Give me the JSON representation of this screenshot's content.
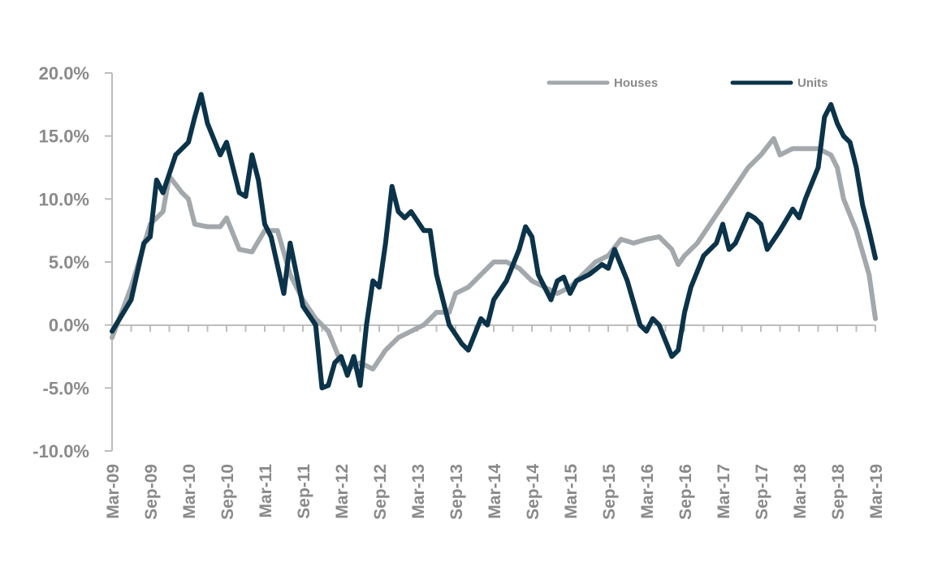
{
  "chart_data": {
    "type": "line",
    "x_tick_labels": [
      "Mar-09",
      "Sep-09",
      "Mar-10",
      "Sep-10",
      "Mar-11",
      "Sep-11",
      "Mar-12",
      "Sep-12",
      "Mar-13",
      "Sep-13",
      "Mar-14",
      "Sep-14",
      "Mar-15",
      "Sep-15",
      "Mar-16",
      "Sep-16",
      "Mar-17",
      "Sep-17",
      "Mar-18",
      "Sep-18",
      "Mar-19"
    ],
    "y_tick_labels": [
      "20.0%",
      "15.0%",
      "10.0%",
      "5.0%",
      "0.0%",
      "-5.0%",
      "-10.0%"
    ],
    "ylim": [
      -10,
      20
    ],
    "grid": false,
    "legend_placement": "top-right",
    "series": [
      {
        "name": "Houses",
        "color": "#a3a8ac",
        "points": [
          [
            "Mar-09",
            -1.0
          ],
          [
            "Jun-09",
            3.0
          ],
          [
            "Sep-09",
            8.0
          ],
          [
            "Nov-09",
            9.0
          ],
          [
            "Dec-09",
            11.8
          ],
          [
            "Feb-10",
            10.5
          ],
          [
            "Mar-10",
            10.0
          ],
          [
            "Apr-10",
            8.0
          ],
          [
            "Jun-10",
            7.8
          ],
          [
            "Aug-10",
            7.8
          ],
          [
            "Sep-10",
            8.5
          ],
          [
            "Nov-10",
            6.0
          ],
          [
            "Jan-11",
            5.8
          ],
          [
            "Mar-11",
            7.5
          ],
          [
            "May-11",
            7.5
          ],
          [
            "Jul-11",
            4.0
          ],
          [
            "Sep-11",
            2.0
          ],
          [
            "Nov-11",
            0.5
          ],
          [
            "Jan-12",
            -0.5
          ],
          [
            "Mar-12",
            -3.0
          ],
          [
            "Apr-12",
            -3.5
          ],
          [
            "Jun-12",
            -3.0
          ],
          [
            "Aug-12",
            -3.5
          ],
          [
            "Oct-12",
            -2.0
          ],
          [
            "Dec-12",
            -1.0
          ],
          [
            "Feb-13",
            -0.5
          ],
          [
            "Apr-13",
            0.0
          ],
          [
            "Jun-13",
            1.0
          ],
          [
            "Aug-13",
            1.0
          ],
          [
            "Sep-13",
            2.5
          ],
          [
            "Nov-13",
            3.0
          ],
          [
            "Jan-14",
            4.0
          ],
          [
            "Mar-14",
            5.0
          ],
          [
            "May-14",
            5.0
          ],
          [
            "Jul-14",
            4.5
          ],
          [
            "Sep-14",
            3.5
          ],
          [
            "Nov-14",
            3.0
          ],
          [
            "Jan-15",
            2.5
          ],
          [
            "Mar-15",
            3.0
          ],
          [
            "May-15",
            4.0
          ],
          [
            "Jul-15",
            5.0
          ],
          [
            "Sep-15",
            5.5
          ],
          [
            "Nov-15",
            6.8
          ],
          [
            "Jan-16",
            6.5
          ],
          [
            "Mar-16",
            6.8
          ],
          [
            "May-16",
            7.0
          ],
          [
            "Jul-16",
            6.0
          ],
          [
            "Aug-16",
            4.8
          ],
          [
            "Sep-16",
            5.5
          ],
          [
            "Nov-16",
            6.5
          ],
          [
            "Jan-17",
            8.0
          ],
          [
            "Mar-17",
            9.5
          ],
          [
            "May-17",
            11.0
          ],
          [
            "Jul-17",
            12.5
          ],
          [
            "Sep-17",
            13.5
          ],
          [
            "Nov-17",
            14.8
          ],
          [
            "Dec-17",
            13.5
          ],
          [
            "Feb-18",
            14.0
          ],
          [
            "Apr-18",
            14.0
          ],
          [
            "Jun-18",
            14.0
          ],
          [
            "Aug-18",
            13.5
          ],
          [
            "Sep-18",
            12.5
          ],
          [
            "Oct-18",
            10.0
          ],
          [
            "Dec-18",
            7.5
          ],
          [
            "Feb-19",
            4.0
          ],
          [
            "Mar-19",
            0.5
          ]
        ]
      },
      {
        "name": "Units",
        "color": "#0b3349",
        "points": [
          [
            "Mar-09",
            -0.5
          ],
          [
            "Jun-09",
            2.0
          ],
          [
            "Aug-09",
            6.5
          ],
          [
            "Sep-09",
            7.0
          ],
          [
            "Oct-09",
            11.5
          ],
          [
            "Nov-09",
            10.5
          ],
          [
            "Dec-09",
            12.0
          ],
          [
            "Jan-10",
            13.5
          ],
          [
            "Mar-10",
            14.5
          ],
          [
            "Apr-10",
            16.5
          ],
          [
            "May-10",
            18.3
          ],
          [
            "Jun-10",
            16.0
          ],
          [
            "Aug-10",
            13.5
          ],
          [
            "Sep-10",
            14.5
          ],
          [
            "Nov-10",
            10.5
          ],
          [
            "Dec-10",
            10.2
          ],
          [
            "Jan-11",
            13.5
          ],
          [
            "Feb-11",
            11.5
          ],
          [
            "Mar-11",
            8.0
          ],
          [
            "Apr-11",
            7.0
          ],
          [
            "Jun-11",
            2.5
          ],
          [
            "Jul-11",
            6.5
          ],
          [
            "Aug-11",
            4.0
          ],
          [
            "Sep-11",
            1.5
          ],
          [
            "Nov-11",
            0.0
          ],
          [
            "Dec-11",
            -5.0
          ],
          [
            "Jan-12",
            -4.8
          ],
          [
            "Feb-12",
            -3.0
          ],
          [
            "Mar-12",
            -2.5
          ],
          [
            "Apr-12",
            -4.0
          ],
          [
            "May-12",
            -2.5
          ],
          [
            "Jun-12",
            -4.8
          ],
          [
            "Jul-12",
            0.0
          ],
          [
            "Aug-12",
            3.5
          ],
          [
            "Sep-12",
            3.0
          ],
          [
            "Oct-12",
            6.5
          ],
          [
            "Nov-12",
            11.0
          ],
          [
            "Dec-12",
            9.0
          ],
          [
            "Jan-13",
            8.5
          ],
          [
            "Feb-13",
            9.0
          ],
          [
            "Apr-13",
            7.5
          ],
          [
            "May-13",
            7.5
          ],
          [
            "Jun-13",
            4.0
          ],
          [
            "Aug-13",
            0.0
          ],
          [
            "Oct-13",
            -1.5
          ],
          [
            "Nov-13",
            -2.0
          ],
          [
            "Jan-14",
            0.5
          ],
          [
            "Feb-14",
            0.0
          ],
          [
            "Mar-14",
            2.0
          ],
          [
            "May-14",
            3.5
          ],
          [
            "Jul-14",
            6.0
          ],
          [
            "Aug-14",
            7.8
          ],
          [
            "Sep-14",
            7.0
          ],
          [
            "Oct-14",
            4.0
          ],
          [
            "Dec-14",
            2.0
          ],
          [
            "Jan-15",
            3.5
          ],
          [
            "Feb-15",
            3.8
          ],
          [
            "Mar-15",
            2.5
          ],
          [
            "Apr-15",
            3.5
          ],
          [
            "Jun-15",
            4.0
          ],
          [
            "Aug-15",
            4.8
          ],
          [
            "Sep-15",
            4.5
          ],
          [
            "Oct-15",
            6.0
          ],
          [
            "Dec-15",
            3.5
          ],
          [
            "Feb-16",
            0.0
          ],
          [
            "Mar-16",
            -0.5
          ],
          [
            "Apr-16",
            0.5
          ],
          [
            "May-16",
            0.0
          ],
          [
            "Jul-16",
            -2.5
          ],
          [
            "Aug-16",
            -2.0
          ],
          [
            "Sep-16",
            1.0
          ],
          [
            "Oct-16",
            3.0
          ],
          [
            "Dec-16",
            5.5
          ],
          [
            "Feb-17",
            6.5
          ],
          [
            "Mar-17",
            8.0
          ],
          [
            "Apr-17",
            6.0
          ],
          [
            "May-17",
            6.5
          ],
          [
            "Jul-17",
            8.8
          ],
          [
            "Aug-17",
            8.5
          ],
          [
            "Sep-17",
            8.0
          ],
          [
            "Oct-17",
            6.0
          ],
          [
            "Dec-17",
            7.5
          ],
          [
            "Feb-18",
            9.2
          ],
          [
            "Mar-18",
            8.5
          ],
          [
            "Apr-18",
            10.0
          ],
          [
            "Jun-18",
            12.5
          ],
          [
            "Jul-18",
            16.5
          ],
          [
            "Aug-18",
            17.5
          ],
          [
            "Sep-18",
            16.0
          ],
          [
            "Oct-18",
            15.0
          ],
          [
            "Nov-18",
            14.5
          ],
          [
            "Dec-18",
            12.5
          ],
          [
            "Jan-19",
            9.5
          ],
          [
            "Feb-19",
            7.5
          ],
          [
            "Mar-19",
            5.3
          ]
        ]
      }
    ]
  }
}
